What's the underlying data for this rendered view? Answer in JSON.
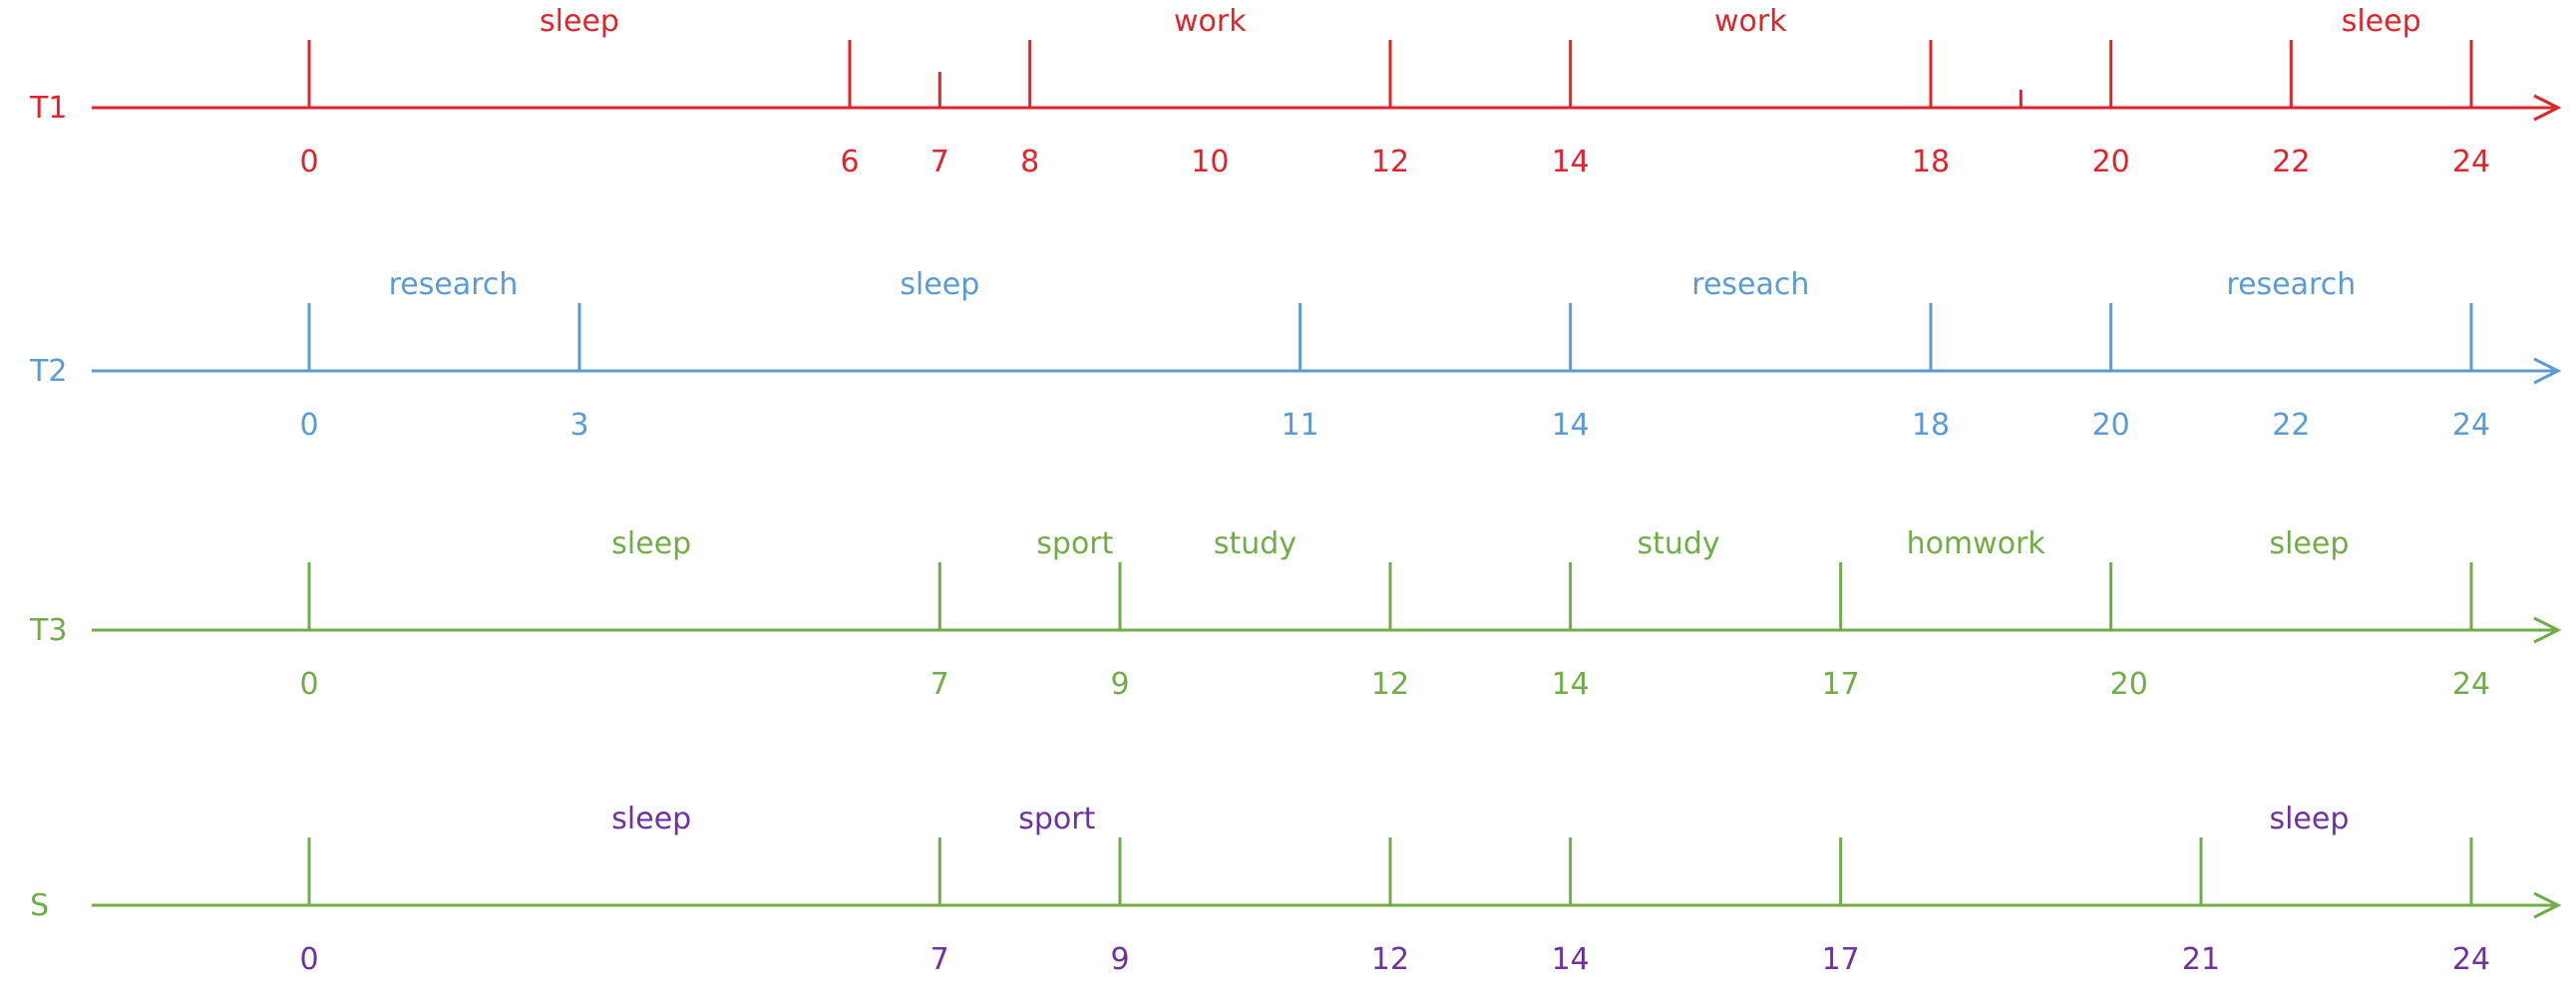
{
  "timelines": [
    {
      "label": "T1",
      "label_color": "#e0242b",
      "line_color": "#e0242b",
      "text_color": "#e0242b",
      "ticks": [
        {
          "h": 0,
          "size": "full"
        },
        {
          "h": 6,
          "size": "full"
        },
        {
          "h": 7,
          "size": "short"
        },
        {
          "h": 8,
          "size": "full"
        },
        {
          "h": 12,
          "size": "full"
        },
        {
          "h": 14,
          "size": "full"
        },
        {
          "h": 18,
          "size": "full"
        },
        {
          "h": 19,
          "size": "tiny"
        },
        {
          "h": 20,
          "size": "full"
        },
        {
          "h": 22,
          "size": "full"
        },
        {
          "h": 24,
          "size": "full"
        }
      ],
      "numbers": [
        {
          "h": 0,
          "text": "0"
        },
        {
          "h": 6,
          "text": "6"
        },
        {
          "h": 7,
          "text": "7"
        },
        {
          "h": 8,
          "text": "8"
        },
        {
          "h": 10,
          "text": "10"
        },
        {
          "h": 12,
          "text": "12"
        },
        {
          "h": 14,
          "text": "14"
        },
        {
          "h": 18,
          "text": "18"
        },
        {
          "h": 20,
          "text": "20"
        },
        {
          "h": 22,
          "text": "22"
        },
        {
          "h": 24,
          "text": "24"
        }
      ],
      "activities": [
        {
          "h": 3,
          "text": "sleep"
        },
        {
          "h": 10,
          "text": "work"
        },
        {
          "h": 16,
          "text": "work"
        },
        {
          "h": 23,
          "text": "sleep"
        }
      ]
    },
    {
      "label": "T2",
      "label_color": "#5b9bd5",
      "line_color": "#5b9bd5",
      "text_color": "#5b9bd5",
      "ticks": [
        {
          "h": 0,
          "size": "full"
        },
        {
          "h": 3,
          "size": "full"
        },
        {
          "h": 11,
          "size": "full"
        },
        {
          "h": 14,
          "size": "full"
        },
        {
          "h": 18,
          "size": "full"
        },
        {
          "h": 20,
          "size": "full"
        },
        {
          "h": 24,
          "size": "full"
        }
      ],
      "numbers": [
        {
          "h": 0,
          "text": "0"
        },
        {
          "h": 3,
          "text": "3"
        },
        {
          "h": 11,
          "text": "11"
        },
        {
          "h": 14,
          "text": "14"
        },
        {
          "h": 18,
          "text": "18"
        },
        {
          "h": 20,
          "text": "20"
        },
        {
          "h": 22,
          "text": "22"
        },
        {
          "h": 24,
          "text": "24"
        }
      ],
      "activities": [
        {
          "h": 1.6,
          "text": "research"
        },
        {
          "h": 7,
          "text": "sleep"
        },
        {
          "h": 16,
          "text": "reseach"
        },
        {
          "h": 22,
          "text": "research"
        }
      ]
    },
    {
      "label": "T3",
      "label_color": "#70ad47",
      "line_color": "#70ad47",
      "text_color": "#70ad47",
      "ticks": [
        {
          "h": 0,
          "size": "full"
        },
        {
          "h": 7,
          "size": "full"
        },
        {
          "h": 9,
          "size": "full"
        },
        {
          "h": 12,
          "size": "full"
        },
        {
          "h": 14,
          "size": "full"
        },
        {
          "h": 17,
          "size": "full"
        },
        {
          "h": 20,
          "size": "full"
        },
        {
          "h": 24,
          "size": "full"
        }
      ],
      "numbers": [
        {
          "h": 0,
          "text": "0"
        },
        {
          "h": 7,
          "text": "7"
        },
        {
          "h": 9,
          "text": "9"
        },
        {
          "h": 12,
          "text": "12"
        },
        {
          "h": 14,
          "text": "14"
        },
        {
          "h": 17,
          "text": "17"
        },
        {
          "h": 20.2,
          "text": "20"
        },
        {
          "h": 24,
          "text": "24"
        }
      ],
      "activities": [
        {
          "h": 3.8,
          "text": "sleep"
        },
        {
          "h": 8.5,
          "text": "sport"
        },
        {
          "h": 10.5,
          "text": "study"
        },
        {
          "h": 15.2,
          "text": "study"
        },
        {
          "h": 18.5,
          "text": "homwork"
        },
        {
          "h": 22.2,
          "text": "sleep"
        }
      ]
    },
    {
      "label": "S",
      "label_color": "#70ad47",
      "line_color": "#70ad47",
      "text_color": "#7030a0",
      "ticks": [
        {
          "h": 0,
          "size": "full"
        },
        {
          "h": 7,
          "size": "full"
        },
        {
          "h": 9,
          "size": "full"
        },
        {
          "h": 12,
          "size": "full"
        },
        {
          "h": 14,
          "size": "full"
        },
        {
          "h": 17,
          "size": "full"
        },
        {
          "h": 21,
          "size": "full"
        },
        {
          "h": 24,
          "size": "full"
        }
      ],
      "numbers": [
        {
          "h": 0,
          "text": "0"
        },
        {
          "h": 7,
          "text": "7"
        },
        {
          "h": 9,
          "text": "9"
        },
        {
          "h": 12,
          "text": "12"
        },
        {
          "h": 14,
          "text": "14"
        },
        {
          "h": 17,
          "text": "17"
        },
        {
          "h": 21,
          "text": "21"
        },
        {
          "h": 24,
          "text": "24"
        }
      ],
      "activities": [
        {
          "h": 3.8,
          "text": "sleep"
        },
        {
          "h": 8.3,
          "text": "sport"
        },
        {
          "h": 22.2,
          "text": "sleep"
        }
      ]
    }
  ]
}
